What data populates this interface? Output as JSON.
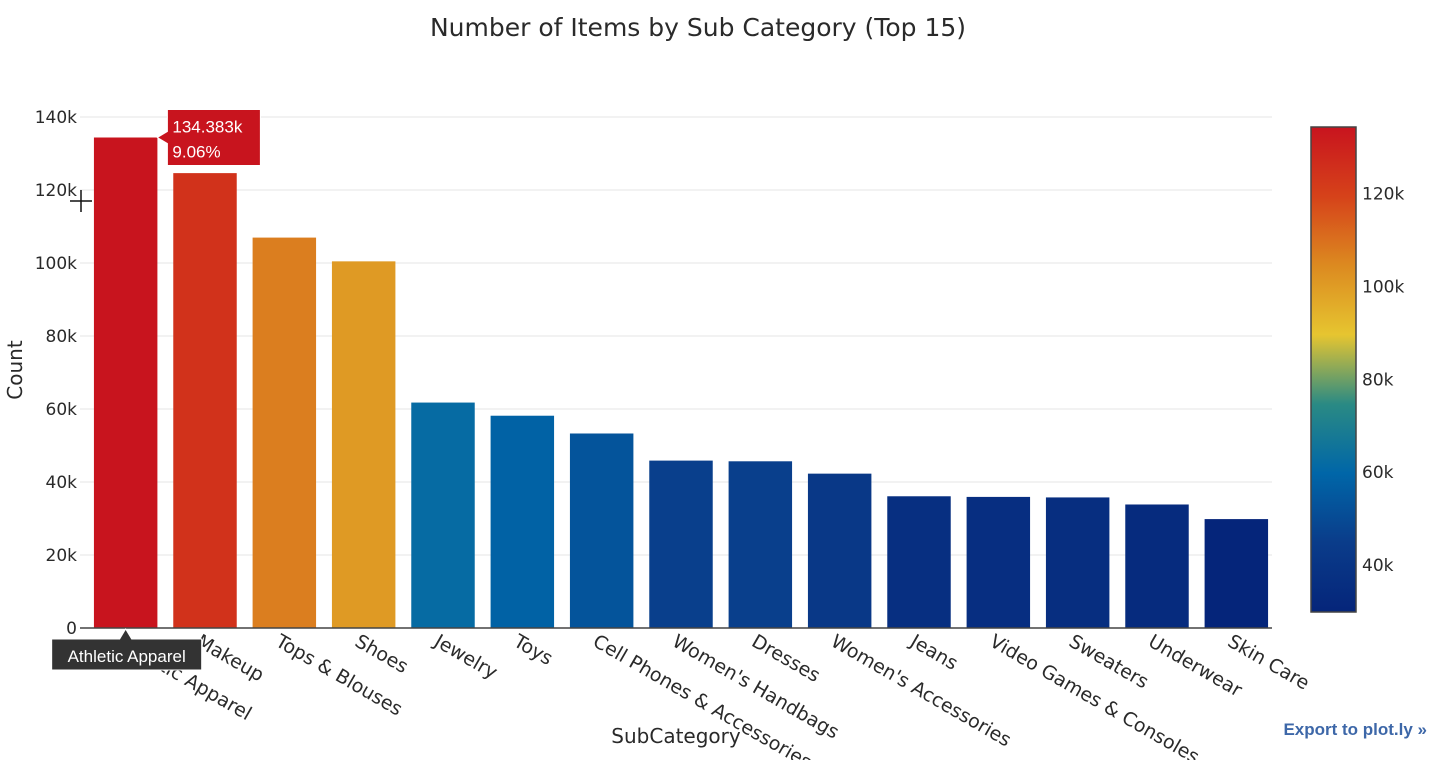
{
  "chart_data": {
    "type": "bar",
    "title": "Number of Items by Sub Category (Top 15)",
    "xlabel": "SubCategory",
    "ylabel": "Count",
    "categories": [
      "Athletic Apparel",
      "Makeup",
      "Tops & Blouses",
      "Shoes",
      "Jewelry",
      "Toys",
      "Cell Phones & Accessories",
      "Women's Handbags",
      "Dresses",
      "Women's Accessories",
      "Jeans",
      "Video Games & Consoles",
      "Sweaters",
      "Underwear",
      "Skin Care"
    ],
    "values": [
      134383,
      124624,
      106960,
      100452,
      61763,
      58158,
      53290,
      45862,
      45673,
      42289,
      36090,
      35916,
      35774,
      33839,
      29838
    ],
    "ylim": [
      0,
      140000
    ],
    "yticks": [
      0,
      20000,
      40000,
      60000,
      80000,
      100000,
      120000,
      140000
    ],
    "ytick_labels": [
      "0",
      "20k",
      "40k",
      "60k",
      "80k",
      "100k",
      "120k",
      "140k"
    ],
    "grid": true,
    "colorbar": {
      "range": [
        29838,
        134383
      ],
      "ticks": [
        40000,
        60000,
        80000,
        100000,
        120000
      ],
      "tick_labels": [
        "40k",
        "60k",
        "80k",
        "100k",
        "120k"
      ],
      "colorscale": [
        "#05257a",
        "#0a3c8a",
        "#0066a8",
        "#2a8a84",
        "#e6c530",
        "#dc8a20",
        "#d6421a",
        "#c8141e"
      ]
    },
    "hover": {
      "category": "Athletic Apparel",
      "value_label": "134.383k",
      "percent_label": "9.06%",
      "color": "#c8141e"
    }
  },
  "export_label": "Export to plot.ly »"
}
